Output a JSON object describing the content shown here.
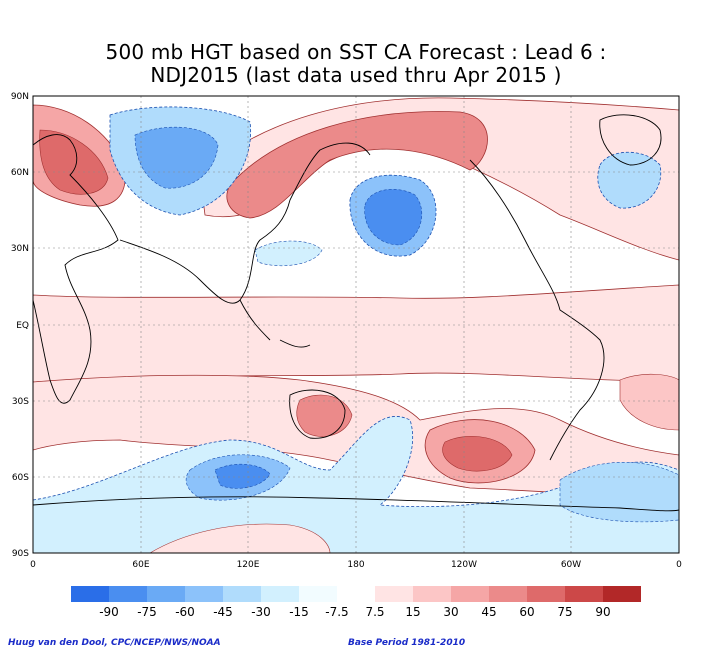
{
  "title_line1": "500 mb HGT based on SST CA Forecast : Lead 6 :",
  "title_line2": "NDJ2015 (last data used thru Apr 2015 )",
  "lat_labels": [
    "90N",
    "60N",
    "30N",
    "EQ",
    "30S",
    "60S",
    "90S"
  ],
  "lon_labels": [
    "0",
    "60E",
    "120E",
    "180",
    "120W",
    "60W",
    "0"
  ],
  "colorbar": {
    "colors": [
      "#2a6ee8",
      "#4a8ef0",
      "#6aaaf5",
      "#8cc2fa",
      "#b0dcfc",
      "#d2f0fe",
      "#f2fcff",
      "#ffffff",
      "#ffe4e4",
      "#fcc6c6",
      "#f5a6a6",
      "#eb8a8a",
      "#de6a6a",
      "#cc4848",
      "#b22828"
    ],
    "labels": [
      "-90",
      "-75",
      "-60",
      "-45",
      "-30",
      "-15",
      "-7.5",
      "7.5",
      "15",
      "30",
      "45",
      "60",
      "75",
      "90"
    ]
  },
  "credit_left": "Huug van den Dool, CPC/NCEP/NWS/NOAA",
  "credit_right": "Base Period 1981-2010"
}
